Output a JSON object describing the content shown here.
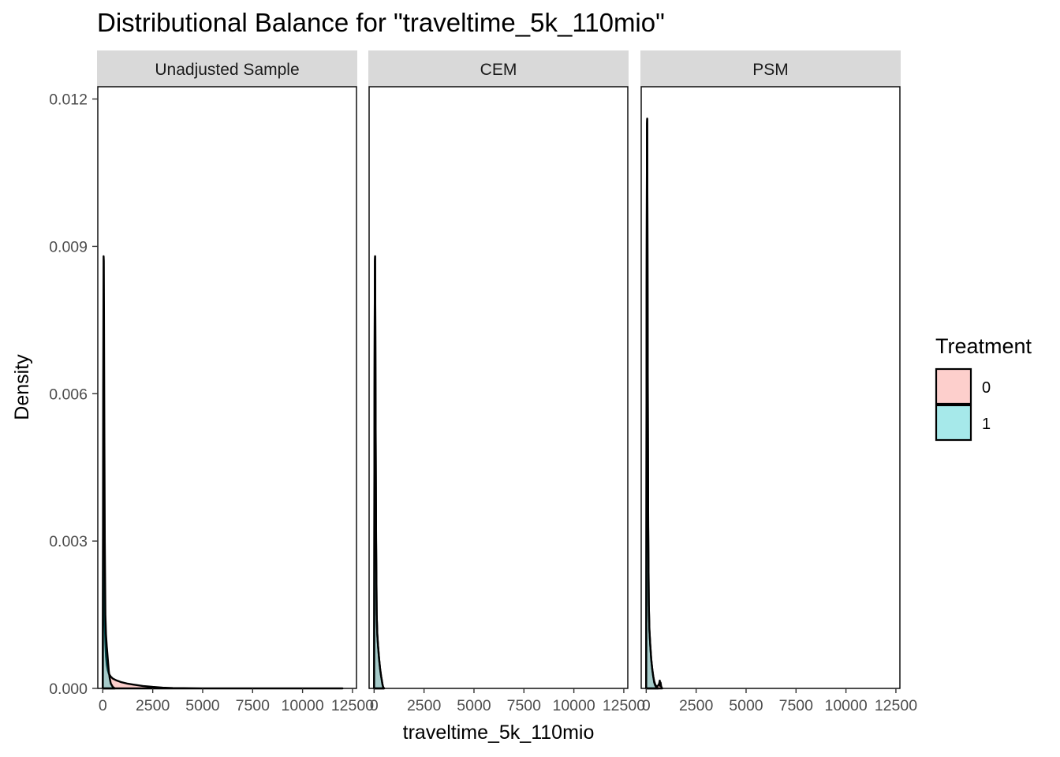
{
  "chart_data": {
    "type": "area",
    "title": "Distributional Balance for \"traveltime_5k_110mio\"",
    "xlabel": "traveltime_5k_110mio",
    "ylabel": "Density",
    "xlim": [
      -250,
      12700
    ],
    "ylim": [
      0,
      0.01225
    ],
    "x_ticks": [
      0,
      2500,
      5000,
      7500,
      10000,
      12500
    ],
    "x_tick_labels": [
      "0",
      "2500",
      "5000",
      "7500",
      "10000",
      "12500"
    ],
    "y_ticks": [
      0,
      0.003,
      0.006,
      0.009,
      0.012
    ],
    "y_tick_labels": [
      "0.000",
      "0.003",
      "0.006",
      "0.009",
      "0.012"
    ],
    "grid": false,
    "legend": {
      "title": "Treatment",
      "position": "right",
      "entries": [
        {
          "label": "0",
          "color": "#F8766D"
        },
        {
          "label": "1",
          "color": "#00BFC4"
        }
      ]
    },
    "fill_alpha": 0.35,
    "panels": [
      {
        "strip": "Unadjusted Sample",
        "series": [
          {
            "name": "0",
            "color": "#F8766D",
            "x": [
              0,
              20,
              40,
              60,
              80,
              100,
              130,
              160,
              200,
              250,
              300,
              400,
              500,
              700,
              900,
              1200,
              1500,
              2000,
              2500,
              3000,
              3500,
              4000,
              5000,
              6000,
              8000,
              10000,
              12000
            ],
            "y": [
              0,
              0.0045,
              0.0048,
              0.0032,
              0.002,
              0.0013,
              0.0009,
              0.00065,
              0.00048,
              0.00037,
              0.0003,
              0.00024,
              0.0002,
              0.00016,
              0.00013,
              0.0001,
              8e-05,
              5e-05,
              3e-05,
              1.5e-05,
              7e-06,
              4e-06,
              1e-06,
              5e-07,
              2e-07,
              1e-07,
              0
            ]
          },
          {
            "name": "1",
            "color": "#00BFC4",
            "x": [
              0,
              20,
              40,
              50,
              60,
              80,
              100,
              130,
              160,
              200,
              250,
              300,
              350,
              400,
              500,
              600
            ],
            "y": [
              0,
              0.006,
              0.0088,
              0.0087,
              0.0075,
              0.005,
              0.003,
              0.0015,
              0.0011,
              0.00085,
              0.0006,
              0.00035,
              0.0002,
              0.0001,
              3e-05,
              0
            ]
          }
        ]
      },
      {
        "strip": "CEM",
        "series": [
          {
            "name": "0",
            "color": "#F8766D",
            "x": [
              0,
              20,
              40,
              50,
              60,
              80,
              100,
              130,
              160,
              200,
              250,
              300,
              350,
              380,
              400,
              420,
              450,
              500
            ],
            "y": [
              0,
              0.006,
              0.0087,
              0.0088,
              0.0076,
              0.005,
              0.003,
              0.0015,
              0.0011,
              0.00085,
              0.0006,
              0.0004,
              0.00025,
              0.00018,
              0.00013,
              8e-05,
              3e-05,
              0
            ]
          },
          {
            "name": "1",
            "color": "#00BFC4",
            "x": [
              0,
              20,
              40,
              50,
              60,
              80,
              100,
              130,
              160,
              200,
              250,
              300,
              350,
              380,
              400,
              420,
              450,
              500
            ],
            "y": [
              0,
              0.006,
              0.0087,
              0.0088,
              0.0076,
              0.005,
              0.003,
              0.0015,
              0.0011,
              0.00085,
              0.0006,
              0.0004,
              0.00025,
              0.00018,
              0.00013,
              8e-05,
              3e-05,
              0
            ]
          }
        ]
      },
      {
        "strip": "PSM",
        "series": [
          {
            "name": "0",
            "color": "#F8766D",
            "x": [
              0,
              20,
              40,
              50,
              60,
              80,
              100,
              130,
              160,
              200,
              250,
              300,
              350,
              400,
              450,
              500,
              550,
              600,
              650,
              680,
              700,
              720,
              750,
              800
            ],
            "y": [
              0,
              0.008,
              0.0115,
              0.0116,
              0.0098,
              0.006,
              0.0033,
              0.0017,
              0.0012,
              0.0009,
              0.0006,
              0.0004,
              0.00025,
              0.00015,
              8e-05,
              5e-05,
              4e-05,
              6e-05,
              0.0001,
              0.00016,
              5e-05,
              0.00012,
              4e-05,
              0
            ]
          },
          {
            "name": "1",
            "color": "#00BFC4",
            "x": [
              0,
              20,
              40,
              50,
              60,
              80,
              100,
              130,
              160,
              200,
              250,
              300,
              350,
              400,
              450,
              500,
              550,
              600
            ],
            "y": [
              0,
              0.008,
              0.0115,
              0.0116,
              0.0098,
              0.006,
              0.0033,
              0.0017,
              0.0012,
              0.0009,
              0.0006,
              0.0004,
              0.00025,
              0.00012,
              6e-05,
              3e-05,
              1e-05,
              0
            ]
          }
        ]
      }
    ]
  }
}
